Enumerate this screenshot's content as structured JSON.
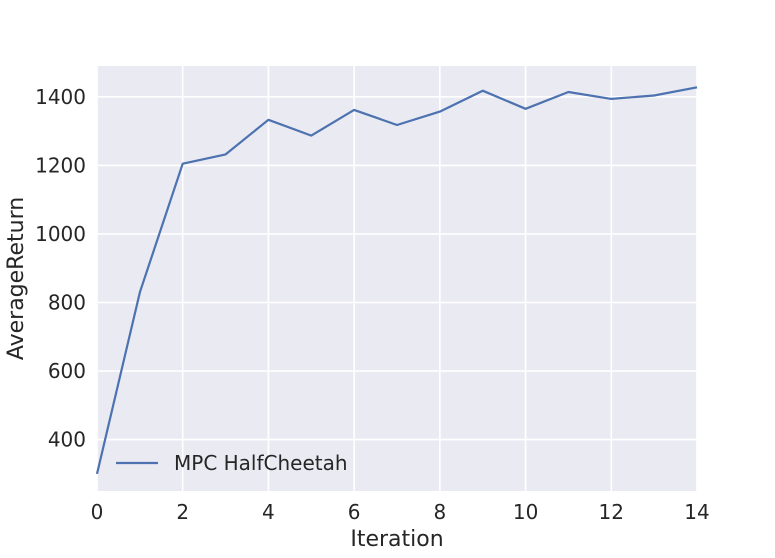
{
  "chart_data": {
    "type": "line",
    "title": "",
    "xlabel": "Iteration",
    "ylabel": "AverageReturn",
    "xlim": [
      0,
      14
    ],
    "ylim": [
      250,
      1490
    ],
    "xticks": [
      0,
      2,
      4,
      6,
      8,
      10,
      12,
      14
    ],
    "xtick_labels": [
      "0",
      "2",
      "4",
      "6",
      "8",
      "10",
      "12",
      "14"
    ],
    "yticks": [
      400,
      600,
      800,
      1000,
      1200,
      1400
    ],
    "ytick_labels": [
      "400",
      "600",
      "800",
      "1000",
      "1200",
      "1400"
    ],
    "grid": true,
    "legend_position": "lower-left",
    "x": [
      0,
      1,
      2,
      3,
      4,
      5,
      6,
      7,
      8,
      9,
      10,
      11,
      12,
      13,
      14
    ],
    "series": [
      {
        "name": "MPC HalfCheetah",
        "color": "#4c72b0",
        "values": [
          300,
          830,
          1205,
          1232,
          1333,
          1287,
          1362,
          1318,
          1357,
          1418,
          1365,
          1414,
          1394,
          1404,
          1428
        ]
      }
    ]
  },
  "colors": {
    "plot_background": "#eaeaf2",
    "grid": "#ffffff",
    "text": "#262626"
  }
}
